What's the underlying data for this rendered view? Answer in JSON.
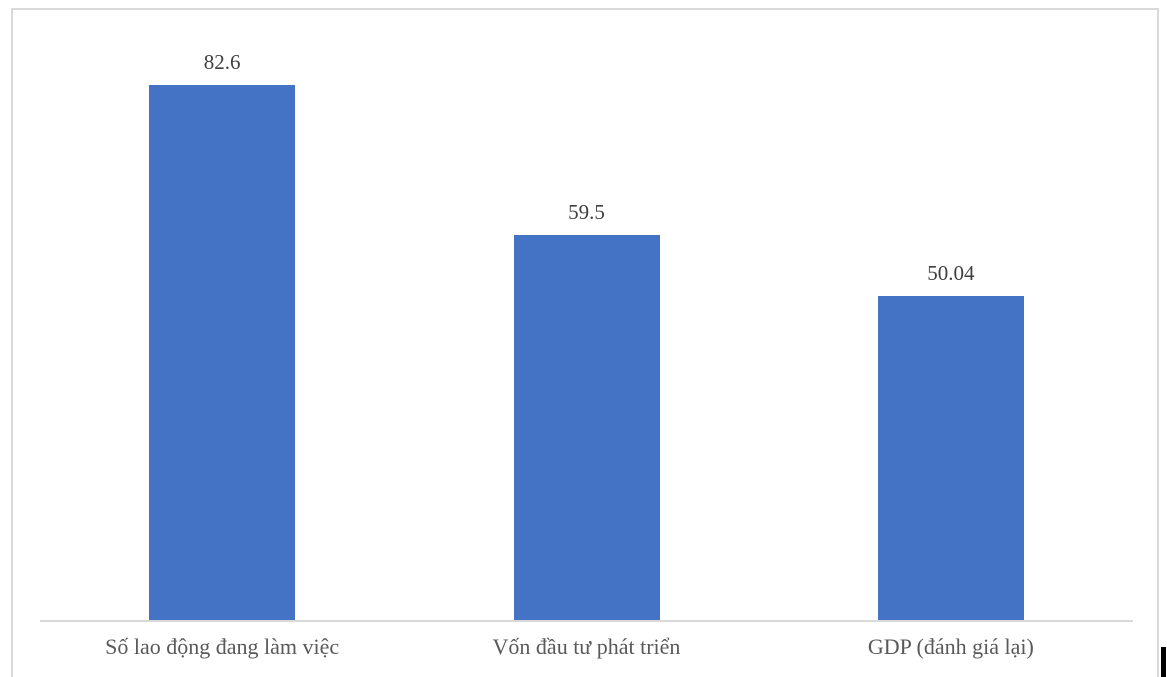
{
  "chart_data": {
    "type": "bar",
    "categories": [
      "Số lao động đang làm việc",
      "Vốn đầu tư phát triển",
      "GDP (đánh giá lại)"
    ],
    "values": [
      82.6,
      59.5,
      50.04
    ],
    "value_labels": [
      "82.6",
      "59.5",
      "50.04"
    ],
    "title": "",
    "xlabel": "",
    "ylabel": "",
    "ylim": [
      0,
      90
    ],
    "grid": false,
    "legend": false,
    "data_labels": true,
    "colors": {
      "bar_fill": "#4472c4",
      "axis_line": "#d9d9d9",
      "frame_border": "#d9d9d9",
      "category_label": "#595959",
      "value_label": "#404040"
    }
  },
  "decorations": {
    "text_cursor_color": "#000000"
  }
}
